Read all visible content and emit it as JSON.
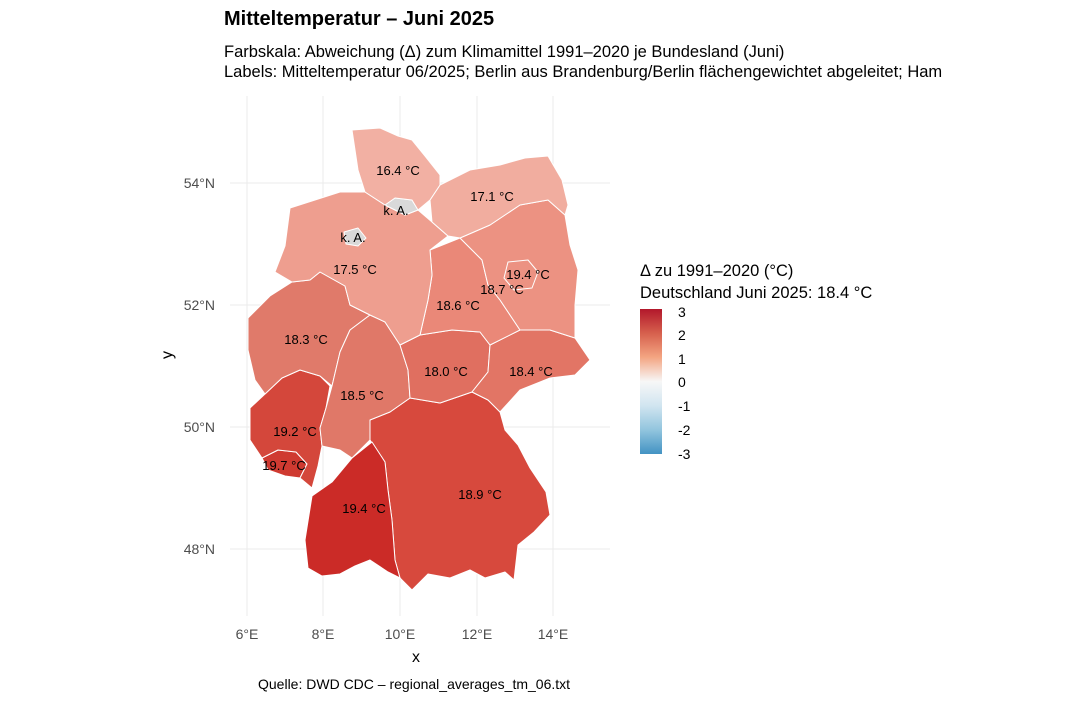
{
  "title": "Mitteltemperatur – Juni 2025",
  "subtitle_line1": "Farbskala: Abweichung (Δ) zum Klimamittel 1991–2020 je Bundesland (Juni)",
  "subtitle_line2": "Labels: Mitteltemperatur 06/2025; Berlin aus Brandenburg/Berlin flächengewichtet abgeleitet; Ham",
  "axes": {
    "xlabel": "x",
    "ylabel": "y",
    "x_ticks": [
      "6°E",
      "8°E",
      "10°E",
      "12°E",
      "14°E"
    ],
    "y_ticks": [
      "54°N",
      "52°N",
      "50°N",
      "48°N"
    ]
  },
  "legend": {
    "title_line1": "Δ zu 1991–2020 (°C)",
    "title_line2": "Deutschland Juni 2025: 18.4 °C",
    "labels": [
      "3",
      "2",
      "1",
      "0",
      "-1",
      "-2",
      "-3"
    ],
    "colors": [
      "#b2182b",
      "#d6604d",
      "#f4a582",
      "#f7f7f7",
      "#d1e5f0",
      "#92c5de",
      "#4393c3"
    ]
  },
  "states": [
    {
      "name_id": "schleswig-holstein",
      "label": "16.4 °C",
      "color": "#f2b0a3"
    },
    {
      "name_id": "hamburg",
      "label": "k. A.",
      "color": "#d9d9d9"
    },
    {
      "name_id": "mecklenburg-vorpommern",
      "label": "17.1 °C",
      "color": "#f1ad9f"
    },
    {
      "name_id": "bremen",
      "label": "k. A.",
      "color": "#d9d9d9"
    },
    {
      "name_id": "niedersachsen",
      "label": "17.5 °C",
      "color": "#ee9e8f"
    },
    {
      "name_id": "brandenburg",
      "label": "18.7 °C",
      "color": "#ec9282"
    },
    {
      "name_id": "berlin",
      "label": "19.4 °C",
      "color": "#ec9282"
    },
    {
      "name_id": "sachsen-anhalt",
      "label": "18.6 °C",
      "color": "#ea8878"
    },
    {
      "name_id": "nordrhein-westfalen",
      "label": "18.3 °C",
      "color": "#e07a6a"
    },
    {
      "name_id": "hessen",
      "label": "18.5 °C",
      "color": "#e07868"
    },
    {
      "name_id": "thueringen",
      "label": "18.0 °C",
      "color": "#e06f60"
    },
    {
      "name_id": "sachsen",
      "label": "18.4 °C",
      "color": "#e27565"
    },
    {
      "name_id": "rheinland-pfalz",
      "label": "19.2 °C",
      "color": "#d4473b"
    },
    {
      "name_id": "saarland",
      "label": "19.7 °C",
      "color": "#cf3a31"
    },
    {
      "name_id": "baden-wuerttemberg",
      "label": "19.4 °C",
      "color": "#cb2b27"
    },
    {
      "name_id": "bayern",
      "label": "18.9 °C",
      "color": "#d7493d"
    }
  ],
  "caption": "Quelle: DWD CDC – regional_averages_tm_06.txt"
}
